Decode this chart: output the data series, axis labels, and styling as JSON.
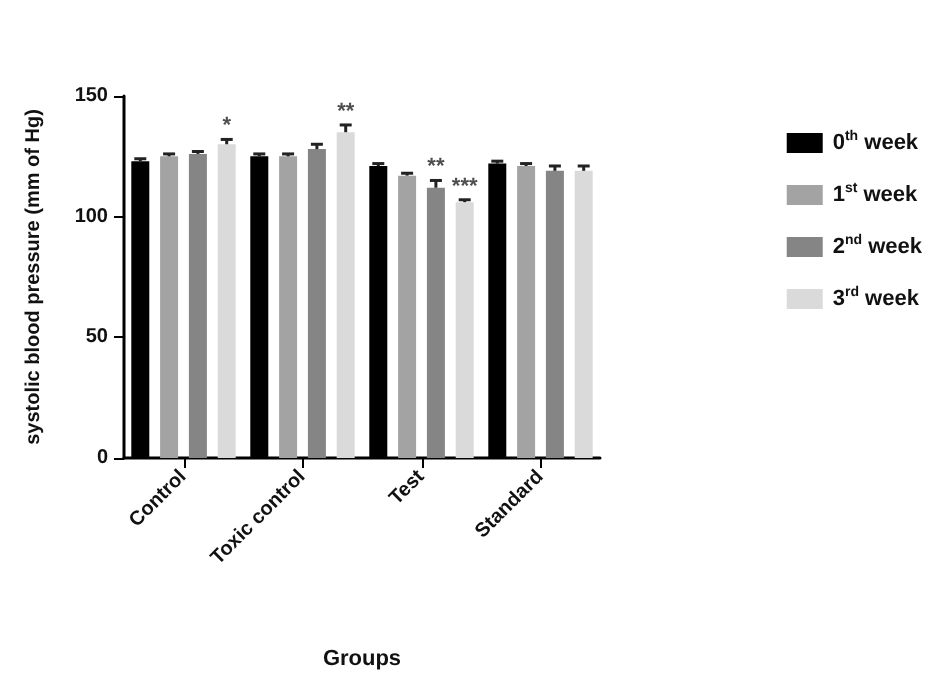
{
  "chart_data": {
    "type": "bar",
    "xlabel": "Groups",
    "ylabel": "systolic blood pressure (mm of Hg)",
    "categories": [
      "Control",
      "Toxic control",
      "Test",
      "Standard"
    ],
    "series": [
      {
        "name": "0$^{th}$ week",
        "color": "#000000",
        "values": [
          123,
          125,
          121,
          122
        ],
        "errors": [
          [
            123,
            124
          ],
          [
            125,
            126
          ],
          [
            121,
            122
          ],
          [
            122,
            123
          ]
        ]
      },
      {
        "name": "1$^{st}$ week",
        "color": "#a3a3a3",
        "values": [
          125,
          125,
          117,
          121
        ],
        "errors": [
          [
            125,
            126
          ],
          [
            125,
            126
          ],
          [
            117,
            118
          ],
          [
            121,
            122
          ]
        ]
      },
      {
        "name": "2$^{nd}$ week",
        "color": "#858585",
        "values": [
          126,
          128,
          112,
          119
        ],
        "errors": [
          [
            126,
            127
          ],
          [
            128,
            130
          ],
          [
            112,
            115
          ],
          [
            119,
            121
          ]
        ]
      },
      {
        "name": "3$^{rd}$ week",
        "color": "#dadada",
        "values": [
          130,
          135,
          106,
          119
        ],
        "errors": [
          [
            130,
            132
          ],
          [
            135,
            138
          ],
          [
            106,
            107
          ],
          [
            119,
            121
          ]
        ]
      }
    ],
    "annotations": [
      {
        "text": "*",
        "x": "Control",
        "y": 130
      },
      "**",
      {
        "text": "**",
        "x": "Test",
        "y": 112
      },
      {
        "text": "***",
        "x": "Test",
        "y": 106
      }
    ],
    "ylim": [
      0,
      150
    ],
    "yticks": [
      0,
      50,
      100,
      150
    ],
    "grid": false,
    "legend": "right"
  }
}
